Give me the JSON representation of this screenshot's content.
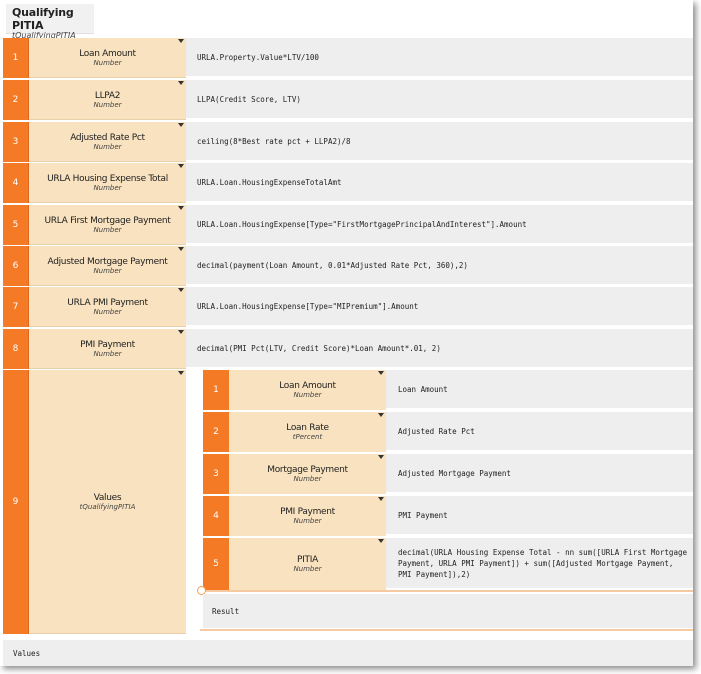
{
  "header": {
    "title": "Qualifying PITIA",
    "subtitle": "tQualifyingPITIA"
  },
  "rows": [
    {
      "num": "1",
      "name": "Loan Amount",
      "type": "Number",
      "formula": "URLA.Property.Value*LTV/100"
    },
    {
      "num": "2",
      "name": "LLPA2",
      "type": "Number",
      "formula": "LLPA(Credit Score, LTV)"
    },
    {
      "num": "3",
      "name": "Adjusted Rate Pct",
      "type": "Number",
      "formula": "ceiling(8*Best rate pct + LLPA2)/8"
    },
    {
      "num": "4",
      "name": "URLA Housing Expense Total",
      "type": "Number",
      "formula": "URLA.Loan.HousingExpenseTotalAmt"
    },
    {
      "num": "5",
      "name": "URLA First Mortgage Payment",
      "type": "Number",
      "formula": "URLA.Loan.HousingExpense[Type=\"FirstMortgagePrincipalAndInterest\"].Amount"
    },
    {
      "num": "6",
      "name": "Adjusted Mortgage Payment",
      "type": "Number",
      "formula": "decimal(payment(Loan Amount, 0.01*Adjusted Rate Pct, 360),2)"
    },
    {
      "num": "7",
      "name": "URLA PMI Payment",
      "type": "Number",
      "formula": "URLA.Loan.HousingExpense[Type=\"MIPremium\"].Amount"
    },
    {
      "num": "8",
      "name": "PMI Payment",
      "type": "Number",
      "formula": "decimal(PMI Pct(LTV, Credit Score)*Loan Amount*.01, 2)"
    },
    {
      "num": "9",
      "name": "Values",
      "type": "tQualifyingPITIA"
    }
  ],
  "nested": [
    {
      "num": "1",
      "name": "Loan Amount",
      "type": "Number",
      "formula": "Loan Amount"
    },
    {
      "num": "2",
      "name": "Loan Rate",
      "type": "tPercent",
      "formula": "Adjusted Rate Pct"
    },
    {
      "num": "3",
      "name": "Mortgage Payment",
      "type": "Number",
      "formula": "Adjusted Mortgage Payment"
    },
    {
      "num": "4",
      "name": "PMI Payment",
      "type": "Number",
      "formula": "PMI Payment"
    },
    {
      "num": "5",
      "name": "PITIA",
      "type": "Number",
      "formula": "decimal(URLA Housing Expense Total - nn sum([URLA First Mortgage Payment, URLA PMI Payment]) + sum([Adjusted Mortgage Payment, PMI Payment]),2)"
    }
  ],
  "result_label": "Result",
  "footer_label": "Values",
  "colors": {
    "accent": "#f47a25",
    "label_bg": "#f8e2bf",
    "value_bg": "#eeeeee"
  }
}
